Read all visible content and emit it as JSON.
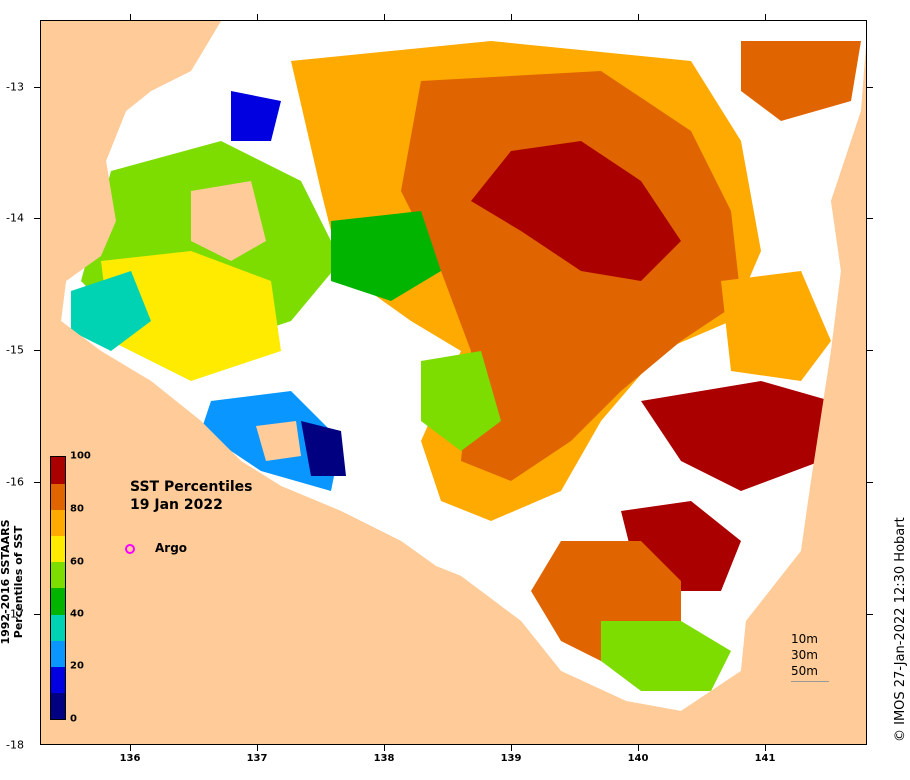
{
  "map": {
    "title_line1": "SST Percentiles",
    "title_line2": "19 Jan 2022",
    "colorbar_title_line1": "1992-2016 SSTAARS",
    "colorbar_title_line2": "Percentiles of SST",
    "colorbar_ticks": [
      "0",
      "20",
      "40",
      "60",
      "80",
      "100"
    ],
    "colorbar_colors": [
      "#000080",
      "#0000e0",
      "#0a96ff",
      "#00d2b4",
      "#00b400",
      "#7ddc00",
      "#ffeb00",
      "#ffaa00",
      "#e06400",
      "#aa0000"
    ],
    "argo_label": "Argo",
    "depth_labels": [
      "10m",
      "30m",
      "50m"
    ],
    "credit": "© IMOS 27-Jan-2022 12:30 Hobart",
    "lat_labels": [
      "-13",
      "-14",
      "-15",
      "-16",
      "-17",
      "-18"
    ],
    "lon_labels": [
      "136",
      "137",
      "138",
      "139",
      "140",
      "141"
    ],
    "land_color": "#ffcc99",
    "nodata_color": "#ffffff"
  }
}
